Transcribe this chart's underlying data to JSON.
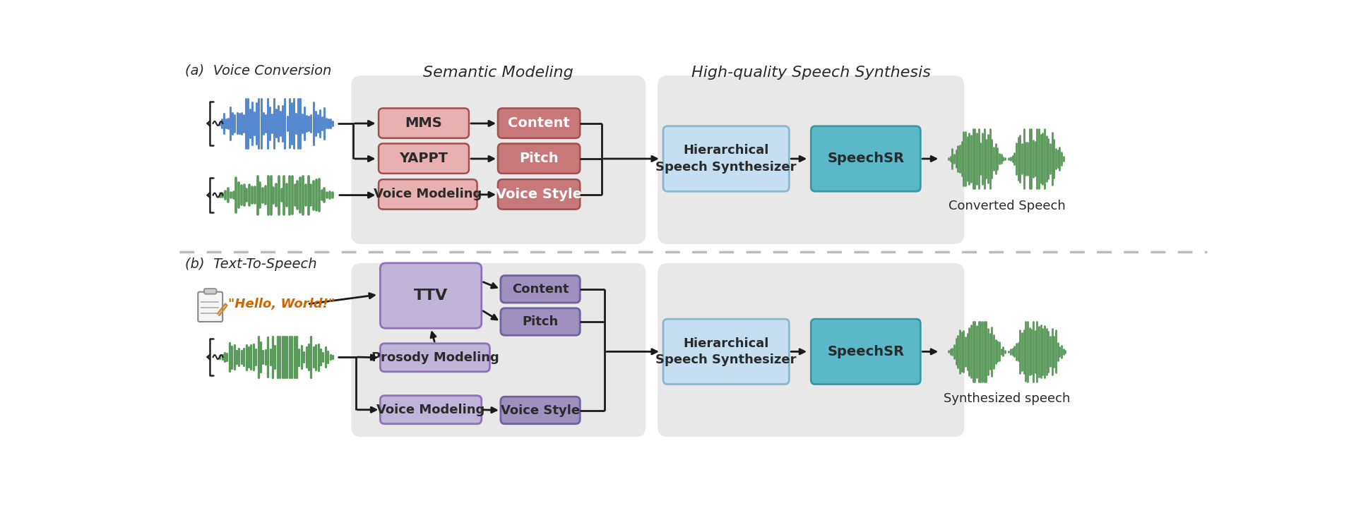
{
  "bg_color": "#ffffff",
  "panel_bg": "#e8e8e8",
  "pink_box_face": "#e8b0b0",
  "pink_box_edge": "#c07878",
  "dark_pink_box_face": "#c87878",
  "dark_pink_box_edge": "#a05050",
  "blue_light_box_face": "#c5dff0",
  "blue_light_box_edge": "#88b8d0",
  "blue_medium_box_face": "#5bb8c8",
  "blue_medium_box_edge": "#3898a8",
  "purple_light_box_face": "#c0b4d8",
  "purple_light_box_edge": "#9070b8",
  "purple_medium_box_face": "#a090c0",
  "purple_medium_box_edge": "#7060a0",
  "text_color": "#2a2a2a",
  "title_color": "#333333",
  "arrow_color": "#1a1a1a",
  "blue_wave_color": "#5588cc",
  "green_wave_color": "#5a9a5a",
  "dashed_line_color": "#bbbbbb",
  "title_a": "(a)  Voice Conversion",
  "title_b": "(b)  Text-To-Speech",
  "section_title_left": "Semantic Modeling",
  "section_title_right": "High-quality Speech Synthesis",
  "output_label_a": "Converted Speech",
  "output_label_b": "Synthesized speech"
}
